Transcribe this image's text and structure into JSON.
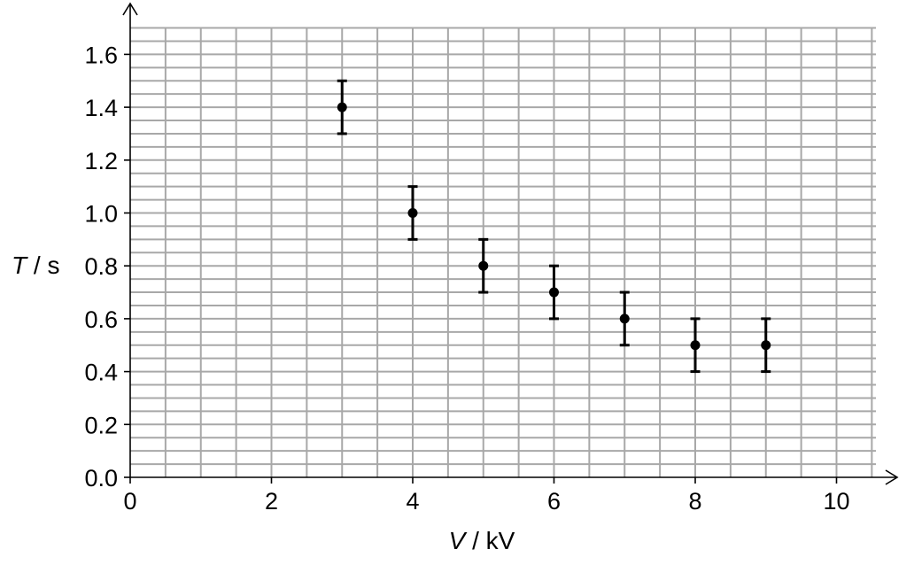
{
  "chart_data": {
    "type": "scatter",
    "xlabel": {
      "symbol": "V",
      "unit": "kV"
    },
    "ylabel": {
      "symbol": "T",
      "unit": "s"
    },
    "xlim": [
      0,
      10.5
    ],
    "ylim": [
      0,
      1.7
    ],
    "x_ticks": [
      "0",
      "2",
      "4",
      "6",
      "8",
      "10"
    ],
    "x_tick_values": [
      0,
      2,
      4,
      6,
      8,
      10
    ],
    "y_ticks": [
      "0.0",
      "0.2",
      "0.4",
      "0.6",
      "0.8",
      "1.0",
      "1.2",
      "1.4",
      "1.6"
    ],
    "y_tick_values": [
      0,
      0.2,
      0.4,
      0.6,
      0.8,
      1.0,
      1.2,
      1.4,
      1.6
    ],
    "grid": {
      "on": true,
      "x_minor_step": 0.5,
      "y_minor_step": 0.05
    },
    "series": [
      {
        "x": [
          3,
          4,
          5,
          6,
          7,
          8,
          9
        ],
        "y": [
          1.4,
          1.0,
          0.8,
          0.7,
          0.6,
          0.5,
          0.5
        ],
        "y_error": 0.1
      }
    ]
  },
  "colors": {
    "grid": "#a8a8a8",
    "axis": "#000000",
    "points": "#000000"
  }
}
